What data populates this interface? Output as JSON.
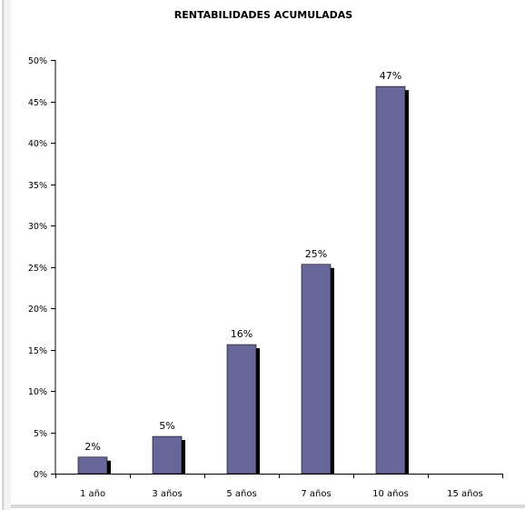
{
  "chart_data": {
    "type": "bar",
    "title": "RENTABILIDADES ACUMULADAS",
    "xlabel": "",
    "ylabel": "",
    "categories": [
      "1 año",
      "3 años",
      "5 años",
      "7 años",
      "10 años",
      "15 años"
    ],
    "values": [
      2,
      4.5,
      15.6,
      25.3,
      46.8,
      null
    ],
    "data_labels": [
      "2%",
      "5%",
      "16%",
      "25%",
      "47%",
      ""
    ],
    "ylim": [
      0,
      50
    ],
    "yticks": [
      0,
      5,
      10,
      15,
      20,
      25,
      30,
      35,
      40,
      45,
      50
    ],
    "ytick_labels": [
      "0%",
      "5%",
      "10%",
      "15%",
      "20%",
      "25%",
      "30%",
      "35%",
      "40%",
      "45%",
      "50%"
    ],
    "grid": false,
    "legend": "none",
    "colors": {
      "bar": "#666699",
      "shadow": "#000000",
      "axis": "#000000"
    }
  }
}
